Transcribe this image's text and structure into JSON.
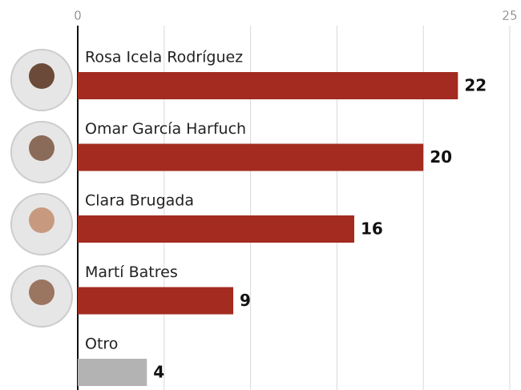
{
  "chart_data": {
    "type": "bar",
    "orientation": "horizontal",
    "categories": [
      "Rosa Icela Rodríguez",
      "Omar García Harfuch",
      "Clara Brugada",
      "Martí Batres",
      "Otro"
    ],
    "values": [
      22,
      20,
      16,
      9,
      4
    ],
    "colors": [
      "#a32b1f",
      "#a32b1f",
      "#a32b1f",
      "#a32b1f",
      "#b3b3b3"
    ],
    "xlim": [
      0,
      25
    ],
    "xticks": [
      0,
      25
    ],
    "grid_lines": [
      5,
      10,
      15,
      20,
      25
    ],
    "grid": true
  }
}
